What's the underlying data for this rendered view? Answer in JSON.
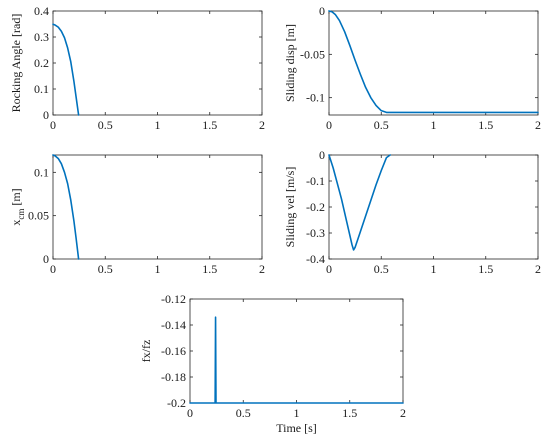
{
  "figure": {
    "background": "#ffffff",
    "line_color": "#0072bd"
  },
  "chart_data": [
    {
      "id": "rocking-angle",
      "type": "line",
      "title": "",
      "xlabel": "",
      "ylabel": "Rocking Angle [rad]",
      "xlim": [
        0,
        2
      ],
      "ylim": [
        0,
        0.4
      ],
      "xticks": [
        0,
        0.5,
        1,
        1.5,
        2
      ],
      "xtick_labels": [
        "0",
        "0.5",
        "1",
        "1.5",
        "2"
      ],
      "yticks": [
        0,
        0.1,
        0.2,
        0.3,
        0.4
      ],
      "ytick_labels": [
        "0",
        "0.1",
        "0.2",
        "0.3",
        "0.4"
      ],
      "grid": false,
      "series": [
        {
          "x": [
            0,
            0.02,
            0.05,
            0.08,
            0.11,
            0.14,
            0.17,
            0.2,
            0.22,
            0.245
          ],
          "y": [
            0.349,
            0.346,
            0.338,
            0.322,
            0.297,
            0.258,
            0.205,
            0.13,
            0.072,
            0
          ]
        }
      ]
    },
    {
      "id": "sliding-disp",
      "type": "line",
      "title": "",
      "xlabel": "",
      "ylabel": "Sliding disp [m]",
      "xlim": [
        0,
        2
      ],
      "ylim": [
        -0.12,
        0
      ],
      "xticks": [
        0,
        0.5,
        1,
        1.5,
        2
      ],
      "xtick_labels": [
        "0",
        "0.5",
        "1",
        "1.5",
        "2"
      ],
      "yticks": [
        -0.1,
        -0.05,
        0
      ],
      "ytick_labels": [
        "-0.1",
        "-0.05",
        "0"
      ],
      "grid": false,
      "series": [
        {
          "x": [
            0,
            0.03,
            0.06,
            0.1,
            0.15,
            0.2,
            0.25,
            0.3,
            0.35,
            0.4,
            0.45,
            0.5,
            0.55,
            0.6,
            1,
            1.5,
            2
          ],
          "y": [
            0,
            -0.001,
            -0.004,
            -0.011,
            -0.024,
            -0.04,
            -0.057,
            -0.073,
            -0.088,
            -0.1,
            -0.109,
            -0.115,
            -0.117,
            -0.117,
            -0.117,
            -0.117,
            -0.117
          ]
        }
      ]
    },
    {
      "id": "x-cm",
      "type": "line",
      "title": "",
      "xlabel": "",
      "ylabel": "x_cm [m]",
      "ylabel_main": "x",
      "ylabel_sub": "cm",
      "ylabel_tail": " [m]",
      "xlim": [
        0,
        2
      ],
      "ylim": [
        0,
        0.12
      ],
      "xticks": [
        0,
        0.5,
        1,
        1.5,
        2
      ],
      "xtick_labels": [
        "0",
        "0.5",
        "1",
        "1.5",
        "2"
      ],
      "yticks": [
        0,
        0.05,
        0.1
      ],
      "ytick_labels": [
        "0",
        "0.05",
        "0.1"
      ],
      "grid": false,
      "series": [
        {
          "x": [
            0,
            0.02,
            0.05,
            0.08,
            0.11,
            0.14,
            0.17,
            0.2,
            0.22,
            0.245
          ],
          "y": [
            0.12,
            0.119,
            0.116,
            0.11,
            0.1,
            0.087,
            0.068,
            0.044,
            0.025,
            0
          ]
        }
      ]
    },
    {
      "id": "sliding-vel",
      "type": "line",
      "title": "",
      "xlabel": "",
      "ylabel": "Sliding vel [m/s]",
      "xlim": [
        0,
        2
      ],
      "ylim": [
        -0.4,
        0
      ],
      "xticks": [
        0,
        0.5,
        1,
        1.5,
        2
      ],
      "xtick_labels": [
        "0",
        "0.5",
        "1",
        "1.5",
        "2"
      ],
      "yticks": [
        -0.4,
        -0.3,
        -0.2,
        -0.1,
        0
      ],
      "ytick_labels": [
        "-0.4",
        "-0.3",
        "-0.2",
        "-0.1",
        "0"
      ],
      "grid": false,
      "series": [
        {
          "x": [
            0,
            0.04,
            0.08,
            0.12,
            0.16,
            0.2,
            0.22,
            0.235,
            0.25,
            0.3,
            0.35,
            0.4,
            0.45,
            0.5,
            0.55,
            0.585
          ],
          "y": [
            0,
            -0.05,
            -0.11,
            -0.17,
            -0.24,
            -0.31,
            -0.345,
            -0.365,
            -0.355,
            -0.295,
            -0.235,
            -0.175,
            -0.115,
            -0.06,
            -0.01,
            0
          ]
        }
      ]
    },
    {
      "id": "fx-fz",
      "type": "line",
      "title": "",
      "xlabel": "Time [s]",
      "ylabel": "fx/fz",
      "xlim": [
        0,
        2
      ],
      "ylim": [
        -0.2,
        -0.12
      ],
      "xticks": [
        0,
        0.5,
        1,
        1.5,
        2
      ],
      "xtick_labels": [
        "0",
        "0.5",
        "1",
        "1.5",
        "2"
      ],
      "yticks": [
        -0.2,
        -0.18,
        -0.16,
        -0.14,
        -0.12
      ],
      "ytick_labels": [
        "-0.2",
        "-0.18",
        "-0.16",
        "-0.14",
        "-0.12"
      ],
      "grid": false,
      "series": [
        {
          "x": [
            0,
            0.236,
            0.24,
            0.244,
            0.248,
            2
          ],
          "y": [
            -0.2,
            -0.2,
            -0.134,
            -0.2,
            -0.2,
            -0.2
          ]
        }
      ]
    }
  ]
}
